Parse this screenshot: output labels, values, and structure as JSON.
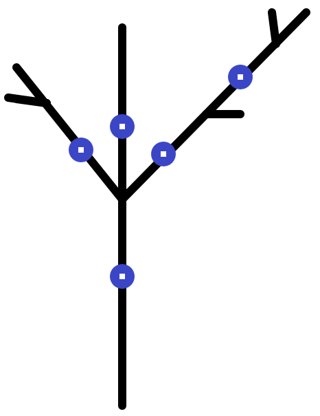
{
  "diagram": {
    "colors": {
      "background": "#ffffff",
      "stroke": "#000000",
      "node_fill": "#3b46c6",
      "node_center": "#ffffff"
    },
    "strokes": [
      {
        "name": "trunk"
      },
      {
        "name": "center-branch"
      },
      {
        "name": "left-branch"
      },
      {
        "name": "left-branch-twig-upper"
      },
      {
        "name": "left-branch-twig-lower"
      },
      {
        "name": "right-branch"
      },
      {
        "name": "right-branch-twig-top"
      },
      {
        "name": "right-branch-twig-mid"
      }
    ],
    "nodes": [
      {
        "name": "trunk-node"
      },
      {
        "name": "center-branch-node"
      },
      {
        "name": "left-branch-node"
      },
      {
        "name": "right-branch-lower-node"
      },
      {
        "name": "right-branch-upper-node"
      }
    ]
  }
}
